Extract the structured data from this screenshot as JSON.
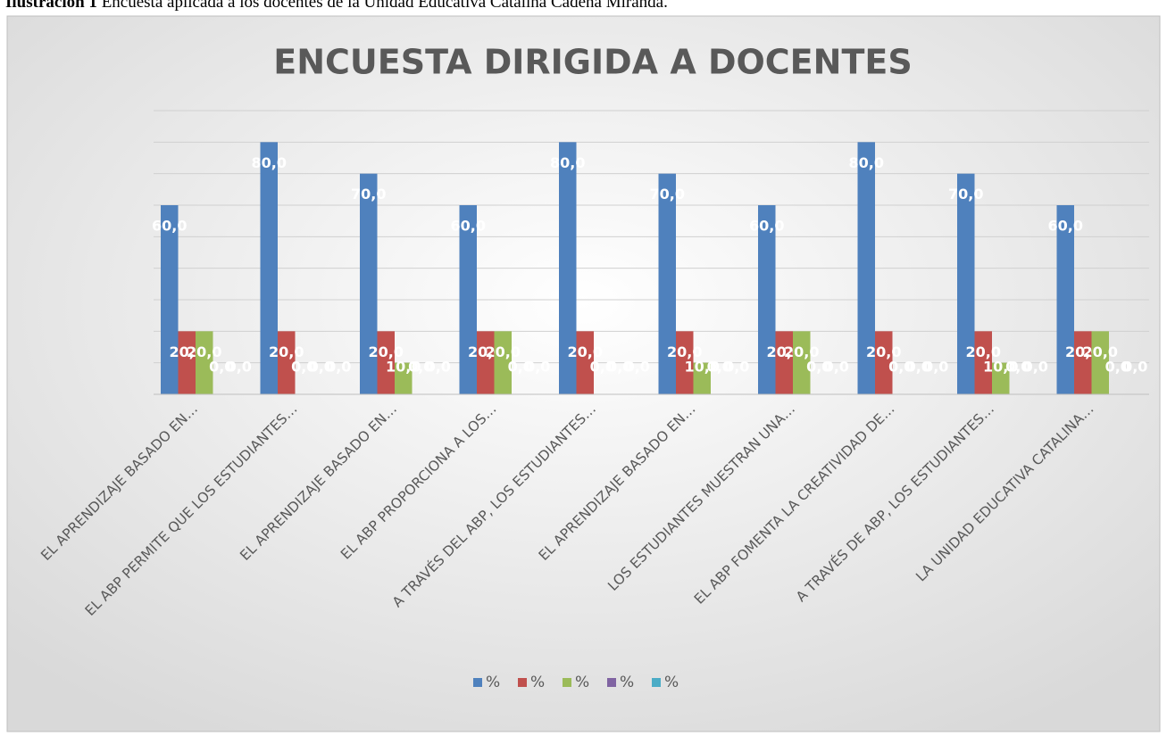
{
  "caption_label": "Ilustración 1",
  "caption": "Encuesta aplicada a los docentes de la Unidad Educativa Catalina Cadena Miranda.",
  "chart_data": {
    "type": "bar",
    "title": "ENCUESTA DIRIGIDA A DOCENTES",
    "categories": [
      "EL APRENDIZAJE BASADO EN…",
      "EL ABP PERMITE QUE LOS ESTUDIANTES…",
      "EL APRENDIZAJE BASADO EN…",
      "EL ABP PROPORCIONA A LOS…",
      "A TRAVÉS DEL ABP, LOS ESTUDIANTES…",
      "EL APRENDIZAJE BASADO EN…",
      "LOS ESTUDIANTES MUESTRAN UNA…",
      "EL ABP FOMENTA LA CREATIVIDAD DE…",
      "A TRAVÉS DE ABP, LOS ESTUDIANTES…",
      "LA UNIDAD EDUCATIVA CATALINA…"
    ],
    "series": [
      {
        "name": "%",
        "color": "#4f81bd",
        "values": [
          60,
          80,
          70,
          60,
          80,
          70,
          60,
          80,
          70,
          60
        ],
        "value_labels": [
          "60,0",
          "80,0",
          "70,0",
          "60,0",
          "80,0",
          "70,0",
          "60,0",
          "80,0",
          "70,0",
          "60,0"
        ]
      },
      {
        "name": "%",
        "color": "#c0504d",
        "values": [
          20,
          20,
          20,
          20,
          20,
          20,
          20,
          20,
          20,
          20
        ],
        "value_labels": [
          "20,0",
          "20,0",
          "20,0",
          "20,0",
          "20,0",
          "20,0",
          "20,0",
          "20,0",
          "20,0",
          "20,0"
        ]
      },
      {
        "name": "%",
        "color": "#9bbb59",
        "values": [
          20,
          0,
          10,
          20,
          0,
          10,
          20,
          0,
          10,
          20
        ],
        "value_labels": [
          "20,0",
          "0,0",
          "10,0",
          "20,0",
          "0,0",
          "10,0",
          "20,0",
          "0,0",
          "10,0",
          "20,0"
        ]
      },
      {
        "name": "%",
        "color": "#8064a2",
        "values": [
          0,
          0,
          0,
          0,
          0,
          0,
          0,
          0,
          0,
          0
        ],
        "value_labels": [
          "0,0",
          "0,0",
          "0,0",
          "0,0",
          "0,0",
          "0,0",
          "0,0",
          "0,0",
          "0,0",
          "0,0"
        ]
      },
      {
        "name": "%",
        "color": "#4bacc6",
        "values": [
          0,
          0,
          0,
          0,
          0,
          0,
          0,
          0,
          0,
          0
        ],
        "value_labels": [
          "0,0",
          "0,0",
          "0,0",
          "0,0",
          "0,0",
          "0,0",
          "0,0",
          "0,0",
          "0,0",
          "0,0"
        ]
      }
    ],
    "ylim": [
      0,
      90
    ],
    "yticks": [
      0,
      10,
      20,
      30,
      40,
      50,
      60,
      70,
      80,
      90
    ],
    "grid": true,
    "legend": "bottom"
  }
}
